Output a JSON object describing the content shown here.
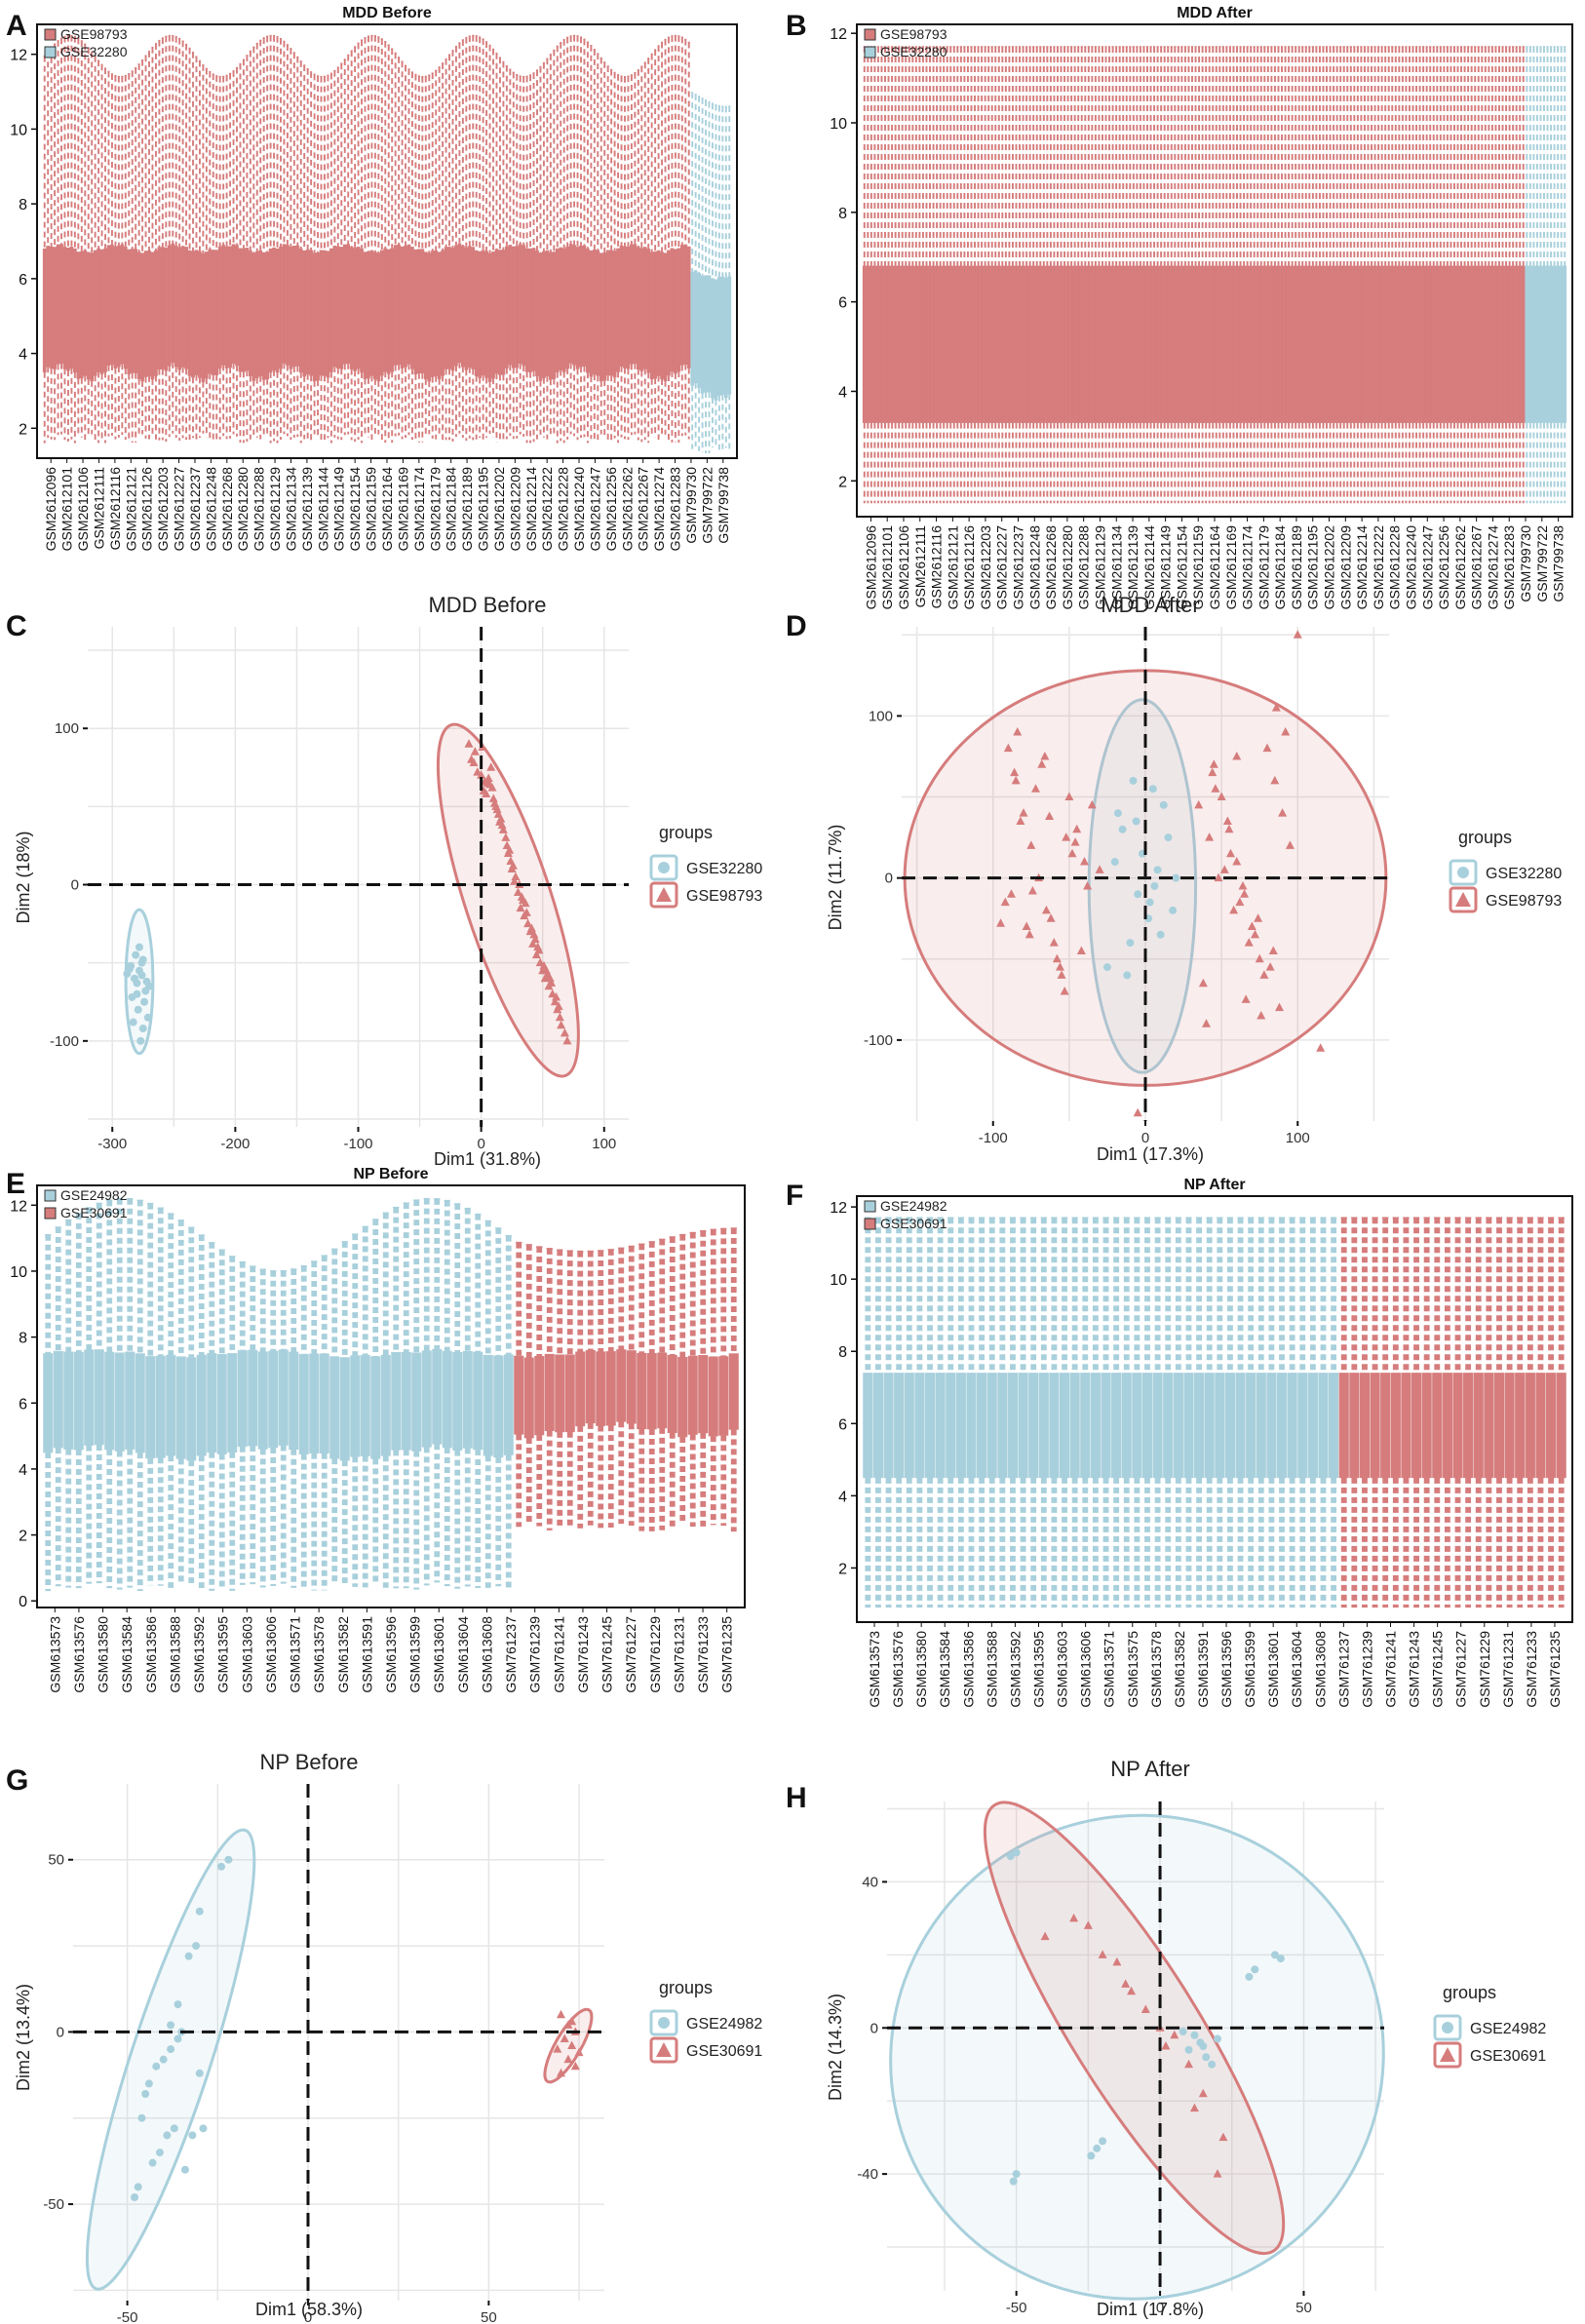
{
  "colors": {
    "red": "#d67c7c",
    "blue": "#a8d0dc",
    "red_dark": "#c85a5a",
    "blue_dark": "#7fb6c8"
  },
  "panel_letters": [
    "A",
    "B",
    "C",
    "D",
    "E",
    "F",
    "G",
    "H"
  ],
  "chart_data": [
    {
      "id": "A",
      "type": "box",
      "title": "MDD Before",
      "ylim": [
        1.2,
        12.8
      ],
      "yticks": [
        2,
        4,
        6,
        8,
        10,
        12
      ],
      "legend": [
        "GSE98793",
        "GSE32280"
      ],
      "group_sizes": [
        192,
        12
      ],
      "box_stats": {
        "GSE98793": {
          "q1": 3.5,
          "q3": 6.8,
          "upper_fence": [
            11.4,
            12.5
          ],
          "lower_fence": 1.6
        },
        "GSE32280": {
          "q1": 3.0,
          "q3": 6.1,
          "upper_fence": [
            10.6,
            11.1
          ],
          "lower_fence": 1.3
        }
      },
      "x_tick_labels": [
        "GSM2612096",
        "GSM2612101",
        "GSM2612106",
        "GSM2612111",
        "GSM2612116",
        "GSM2612121",
        "GSM2612126",
        "GSM2612203",
        "GSM2612227",
        "GSM2612237",
        "GSM2612248",
        "GSM2612268",
        "GSM2612280",
        "GSM2612288",
        "GSM2612129",
        "GSM2612134",
        "GSM2612139",
        "GSM2612144",
        "GSM2612149",
        "GSM2612154",
        "GSM2612159",
        "GSM2612164",
        "GSM2612169",
        "GSM2612174",
        "GSM2612179",
        "GSM2612184",
        "GSM2612189",
        "GSM2612195",
        "GSM2612202",
        "GSM2612209",
        "GSM2612214",
        "GSM2612222",
        "GSM2612228",
        "GSM2612240",
        "GSM2612247",
        "GSM2612256",
        "GSM2612262",
        "GSM2612267",
        "GSM2612274",
        "GSM2612283",
        "GSM799730",
        "GSM799722",
        "GSM799738"
      ]
    },
    {
      "id": "B",
      "type": "box",
      "title": "MDD After",
      "ylim": [
        1.2,
        12.2
      ],
      "yticks": [
        2,
        4,
        6,
        8,
        10,
        12
      ],
      "legend": [
        "GSE98793",
        "GSE32280"
      ],
      "group_sizes": [
        192,
        12
      ],
      "box_stats": {
        "GSE98793": {
          "q1": 3.3,
          "q3": 6.8,
          "upper_fence": 11.7,
          "lower_fence": 1.5
        },
        "GSE32280": {
          "q1": 3.3,
          "q3": 6.8,
          "upper_fence": 11.7,
          "lower_fence": 1.5
        }
      },
      "x_tick_labels": [
        "GSM2612096",
        "GSM2612101",
        "GSM2612106",
        "GSM2612111",
        "GSM2612116",
        "GSM2612121",
        "GSM2612126",
        "GSM2612203",
        "GSM2612227",
        "GSM2612237",
        "GSM2612248",
        "GSM2612268",
        "GSM2612280",
        "GSM2612288",
        "GSM2612129",
        "GSM2612134",
        "GSM2612139",
        "GSM2612144",
        "GSM2612149",
        "GSM2612154",
        "GSM2612159",
        "GSM2612164",
        "GSM2612169",
        "GSM2612174",
        "GSM2612179",
        "GSM2612184",
        "GSM2612189",
        "GSM2612195",
        "GSM2612202",
        "GSM2612209",
        "GSM2612214",
        "GSM2612222",
        "GSM2612228",
        "GSM2612240",
        "GSM2612247",
        "GSM2612256",
        "GSM2612262",
        "GSM2612267",
        "GSM2612274",
        "GSM2612283",
        "GSM799730",
        "GSM799722",
        "GSM799738"
      ]
    },
    {
      "id": "C",
      "type": "scatter",
      "title": "MDD Before",
      "xlabel": "Dim1 (31.8%)",
      "ylabel": "Dim2 (18%)",
      "xlim": [
        -320,
        120
      ],
      "ylim": [
        -155,
        165
      ],
      "xticks": [
        -300,
        -200,
        -100,
        0,
        100
      ],
      "yticks": [
        -100,
        0,
        100
      ],
      "legend_title": "groups",
      "legend": [
        "GSE32280",
        "GSE98793"
      ],
      "series": [
        {
          "name": "GSE32280",
          "shape": "circle",
          "x": [
            -282,
            -278,
            -275,
            -285,
            -270,
            -280,
            -276,
            -272,
            -288,
            -281,
            -274,
            -279,
            -283,
            -277,
            -271,
            -286,
            -273,
            -280,
            -276,
            -284,
            -278,
            -275
          ],
          "y": [
            -60,
            -55,
            -48,
            -52,
            -65,
            -70,
            -58,
            -62,
            -57,
            -45,
            -75,
            -80,
            -88,
            -100,
            -85,
            -54,
            -68,
            -63,
            -50,
            -72,
            -40,
            -92
          ],
          "ellipse": {
            "cx": -278,
            "cy": -62,
            "rx": 11,
            "ry": 46,
            "angle_deg": 0
          }
        },
        {
          "name": "GSE98793",
          "shape": "triangle",
          "x": [
            -10,
            -5,
            0,
            5,
            8,
            2,
            -8,
            10,
            12,
            15,
            18,
            20,
            22,
            25,
            28,
            30,
            32,
            35,
            38,
            40,
            42,
            45,
            48,
            50,
            52,
            55,
            58,
            60,
            62,
            65,
            -3,
            6,
            14,
            24,
            34,
            44,
            54,
            64,
            1,
            9,
            17,
            27,
            37,
            47,
            57,
            -6,
            3,
            11,
            21,
            31,
            41,
            51,
            61,
            68,
            70,
            4,
            13,
            23,
            33,
            43,
            53,
            63,
            7,
            16,
            26,
            36,
            46,
            56
          ],
          "y": [
            90,
            85,
            70,
            65,
            75,
            60,
            80,
            55,
            50,
            40,
            35,
            30,
            20,
            10,
            5,
            -5,
            -15,
            -20,
            -25,
            -30,
            -38,
            -45,
            -50,
            -55,
            -60,
            -65,
            -70,
            -75,
            -80,
            -90,
            72,
            68,
            45,
            15,
            -10,
            -35,
            -58,
            -85,
            88,
            62,
            38,
            2,
            -18,
            -42,
            -63,
            78,
            66,
            52,
            25,
            0,
            -28,
            -52,
            -72,
            -95,
            -100,
            58,
            48,
            22,
            -8,
            -32,
            -55,
            -78,
            64,
            42,
            12,
            -12,
            -40,
            -60
          ],
          "ellipse": {
            "cx": 22,
            "cy": -10,
            "rx": 35,
            "ry": 118,
            "angle_deg": -18
          }
        }
      ]
    },
    {
      "id": "D",
      "type": "scatter",
      "title": "MDD After",
      "xlabel": "Dim1 (17.3%)",
      "ylabel": "Dim2 (11.7%)",
      "xlim": [
        -160,
        160
      ],
      "ylim": [
        -150,
        155
      ],
      "xticks": [
        -100,
        0,
        100
      ],
      "yticks": [
        -100,
        0,
        100
      ],
      "legend_title": "groups",
      "legend": [
        "GSE32280",
        "GSE98793"
      ],
      "series": [
        {
          "name": "GSE32280",
          "shape": "circle",
          "x": [
            -8,
            5,
            12,
            -15,
            -20,
            8,
            -5,
            18,
            -10,
            2,
            -12,
            15,
            -18,
            6,
            -2,
            10,
            -25,
            20,
            -6,
            3
          ],
          "y": [
            60,
            55,
            45,
            30,
            10,
            5,
            -10,
            -20,
            -40,
            -25,
            -60,
            25,
            40,
            -5,
            15,
            -35,
            -55,
            0,
            35,
            -15
          ],
          "ellipse": {
            "cx": -2,
            "cy": -5,
            "rx": 35,
            "ry": 115,
            "angle_deg": 0
          }
        },
        {
          "name": "GSE98793",
          "shape": "triangle",
          "x": [
            -90,
            -85,
            -80,
            -75,
            -70,
            -65,
            -60,
            -55,
            -50,
            -45,
            -40,
            -88,
            -78,
            -68,
            -58,
            -48,
            -38,
            -82,
            -72,
            -62,
            -52,
            -42,
            -35,
            -30,
            -92,
            -86,
            -76,
            -66,
            -56,
            -46,
            -95,
            -63,
            -53,
            -74,
            -84,
            40,
            45,
            50,
            55,
            60,
            65,
            70,
            75,
            80,
            85,
            90,
            95,
            48,
            58,
            68,
            78,
            88,
            35,
            42,
            52,
            62,
            72,
            82,
            92,
            44,
            54,
            64,
            74,
            84,
            38,
            46,
            56,
            66,
            76,
            86,
            100,
            115,
            -5,
            60
          ],
          "y": [
            80,
            60,
            40,
            20,
            0,
            -20,
            -40,
            -60,
            50,
            30,
            10,
            -10,
            -30,
            70,
            -50,
            15,
            -5,
            35,
            55,
            -25,
            25,
            -45,
            45,
            5,
            -15,
            65,
            -35,
            75,
            -55,
            22,
            -28,
            38,
            -70,
            -8,
            90,
            -90,
            70,
            50,
            30,
            10,
            -10,
            -30,
            -50,
            80,
            60,
            40,
            20,
            0,
            -20,
            -40,
            -60,
            -80,
            45,
            25,
            5,
            -15,
            -35,
            -55,
            90,
            65,
            35,
            -5,
            -25,
            -45,
            -65,
            55,
            15,
            -75,
            -85,
            105,
            150,
            -105,
            -145,
            75
          ],
          "ellipse": {
            "cx": 0,
            "cy": 0,
            "rx": 158,
            "ry": 128,
            "angle_deg": 0
          }
        }
      ]
    },
    {
      "id": "E",
      "type": "box",
      "title": "NP Before",
      "ylim": [
        -0.2,
        12.6
      ],
      "yticks": [
        0,
        2,
        4,
        6,
        8,
        10,
        12
      ],
      "legend": [
        "GSE24982",
        "GSE30691"
      ],
      "group_sizes": [
        46,
        22
      ],
      "box_stats": {
        "GSE24982": {
          "q1": 4.5,
          "q3": 7.5,
          "upper_fence": [
            10.0,
            12.2
          ],
          "lower_fence": 0.3
        },
        "GSE30691": {
          "q1": 5.2,
          "q3": 7.5,
          "upper_fence": [
            10.6,
            11.3
          ],
          "lower_fence": 2.1
        }
      },
      "x_tick_labels": [
        "GSM613573",
        "GSM613576",
        "GSM613580",
        "GSM613584",
        "GSM613586",
        "GSM613588",
        "GSM613592",
        "GSM613595",
        "GSM613603",
        "GSM613606",
        "GSM613571",
        "GSM613578",
        "GSM613582",
        "GSM613591",
        "GSM613596",
        "GSM613599",
        "GSM613601",
        "GSM613604",
        "GSM613608",
        "GSM761237",
        "GSM761239",
        "GSM761241",
        "GSM761243",
        "GSM761245",
        "GSM761227",
        "GSM761229",
        "GSM761231",
        "GSM761233",
        "GSM761235"
      ]
    },
    {
      "id": "F",
      "type": "box",
      "title": "NP After",
      "ylim": [
        0.5,
        12.3
      ],
      "yticks": [
        2,
        4,
        6,
        8,
        10,
        12
      ],
      "legend": [
        "GSE24982",
        "GSE30691"
      ],
      "group_sizes": [
        46,
        22
      ],
      "box_stats": {
        "GSE24982": {
          "q1": 4.5,
          "q3": 7.4,
          "upper_fence": 11.7,
          "lower_fence": 0.9
        },
        "GSE30691": {
          "q1": 4.5,
          "q3": 7.4,
          "upper_fence": 11.7,
          "lower_fence": 0.9
        }
      },
      "x_tick_labels": [
        "GSM613573",
        "GSM613576",
        "GSM613580",
        "GSM613584",
        "GSM613586",
        "GSM613588",
        "GSM613592",
        "GSM613595",
        "GSM613603",
        "GSM613606",
        "GSM613571",
        "GSM613575",
        "GSM613578",
        "GSM613582",
        "GSM613591",
        "GSM613596",
        "GSM613599",
        "GSM613601",
        "GSM613604",
        "GSM613608",
        "GSM761237",
        "GSM761239",
        "GSM761241",
        "GSM761243",
        "GSM761245",
        "GSM761227",
        "GSM761229",
        "GSM761231",
        "GSM761233",
        "GSM761235"
      ]
    },
    {
      "id": "G",
      "type": "scatter",
      "title": "NP Before",
      "xlabel": "Dim1 (58.3%)",
      "ylabel": "Dim2 (13.4%)",
      "xlim": [
        -65,
        82
      ],
      "ylim": [
        -78,
        72
      ],
      "xticks": [
        -50,
        0,
        50
      ],
      "yticks": [
        -50,
        0,
        50
      ],
      "legend_title": "groups",
      "legend": [
        "GSE24982",
        "GSE30691"
      ],
      "series": [
        {
          "name": "GSE24982",
          "shape": "circle",
          "x": [
            -22,
            -24,
            -30,
            -31,
            -33,
            -35,
            -36,
            -38,
            -40,
            -42,
            -44,
            -45,
            -46,
            -37,
            -39,
            -41,
            -43,
            -34,
            -32,
            -29,
            -47,
            -48,
            -38,
            -36,
            -30
          ],
          "y": [
            50,
            48,
            35,
            25,
            22,
            0,
            -2,
            -5,
            -8,
            -10,
            -15,
            -18,
            -25,
            -28,
            -30,
            -35,
            -38,
            -40,
            -30,
            -28,
            -45,
            -48,
            2,
            8,
            -12
          ],
          "ellipse": {
            "cx": -38,
            "cy": -8,
            "rx": 11,
            "ry": 70,
            "angle_deg": 18
          }
        },
        {
          "name": "GSE30691",
          "shape": "triangle",
          "x": [
            70,
            72,
            74,
            71,
            73,
            75,
            69,
            72,
            74,
            70,
            73
          ],
          "y": [
            5,
            2,
            0,
            -2,
            -4,
            -6,
            -5,
            -8,
            -10,
            -12,
            3
          ],
          "ellipse": {
            "cx": 72,
            "cy": -4,
            "rx": 3.5,
            "ry": 12,
            "angle_deg": 30
          }
        }
      ]
    },
    {
      "id": "H",
      "type": "scatter",
      "title": "NP After",
      "xlabel": "Dim1 (17.8%)",
      "ylabel": "Dim2 (14.3%)",
      "xlim": [
        -95,
        78
      ],
      "ylim": [
        -72,
        62
      ],
      "xticks": [
        -50,
        0,
        50
      ],
      "yticks": [
        -40,
        0,
        40
      ],
      "legend_title": "groups",
      "legend": [
        "GSE24982",
        "GSE30691"
      ],
      "series": [
        {
          "name": "GSE24982",
          "shape": "circle",
          "x": [
            -50,
            -52,
            -22,
            -20,
            -24,
            31,
            33,
            40,
            42,
            12,
            14,
            15,
            16,
            18,
            10,
            8,
            20,
            -51,
            -50
          ],
          "y": [
            48,
            47,
            -33,
            -31,
            -35,
            14,
            16,
            20,
            19,
            -2,
            -4,
            -5,
            -8,
            -10,
            -6,
            -1,
            -3,
            -42,
            -40
          ],
          "ellipse": {
            "cx": -8,
            "cy": -8,
            "rx": 86,
            "ry": 66,
            "angle_deg": -20
          }
        },
        {
          "name": "GSE30691",
          "shape": "triangle",
          "x": [
            -40,
            -30,
            -20,
            -15,
            -10,
            -5,
            0,
            5,
            10,
            15,
            20,
            -25,
            -12,
            2,
            12,
            22
          ],
          "y": [
            25,
            30,
            20,
            18,
            10,
            5,
            0,
            -2,
            -10,
            -18,
            -40,
            28,
            12,
            -5,
            -22,
            -30
          ],
          "ellipse": {
            "cx": -9,
            "cy": 0,
            "rx": 22,
            "ry": 72,
            "angle_deg": -32
          }
        }
      ]
    }
  ]
}
